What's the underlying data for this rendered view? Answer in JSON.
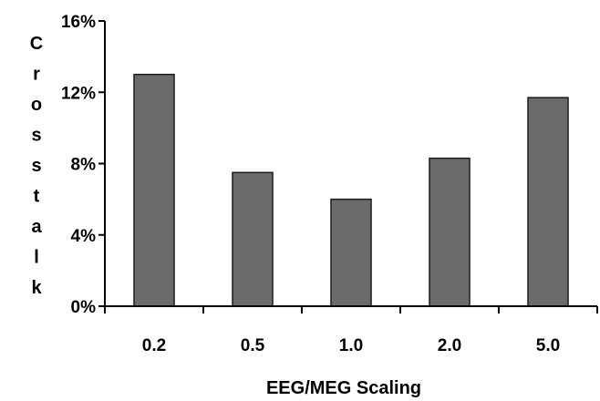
{
  "chart_data": {
    "type": "bar",
    "categories": [
      "0.2",
      "0.5",
      "1.0",
      "2.0",
      "5.0"
    ],
    "values": [
      13.0,
      7.5,
      6.0,
      8.3,
      11.7
    ],
    "ylabel": "Crosstalk",
    "xlabel": "EEG/MEG Scaling",
    "ylim": [
      0,
      16
    ],
    "yticks": [
      0,
      4,
      8,
      12,
      16
    ],
    "ytick_labels": [
      "0%",
      "4%",
      "8%",
      "12%",
      "16%"
    ],
    "grid": false,
    "legend": "none",
    "bar_color": "#6b6b6b",
    "bar_stroke": "#1a1a1a"
  }
}
